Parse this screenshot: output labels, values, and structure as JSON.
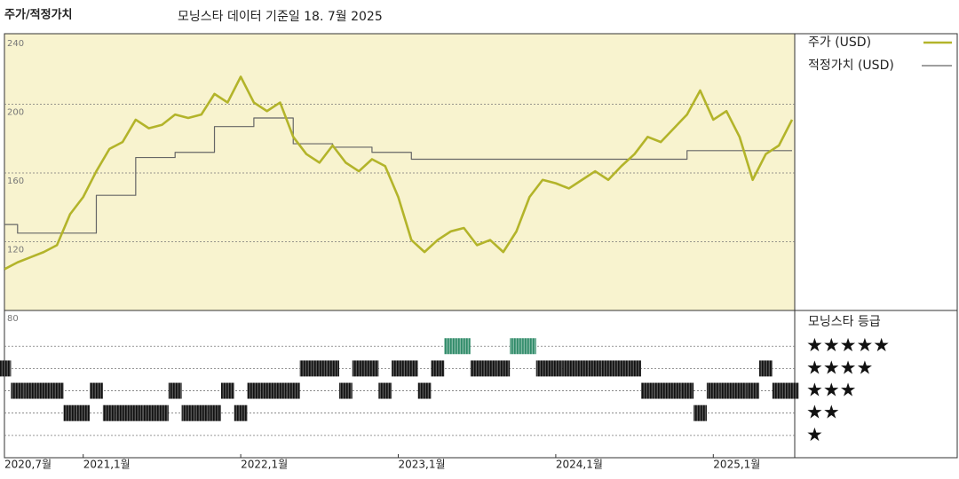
{
  "chart_data": [
    {
      "type": "line",
      "title": "주가/적정가치",
      "subtitle": "모닝스타 데이터 기준일 18. 7월 2025",
      "x": [
        "2020-07",
        "2020-08",
        "2020-09",
        "2020-10",
        "2020-11",
        "2020-12",
        "2021-01",
        "2021-02",
        "2021-03",
        "2021-04",
        "2021-05",
        "2021-06",
        "2021-07",
        "2021-08",
        "2021-09",
        "2021-10",
        "2021-11",
        "2021-12",
        "2022-01",
        "2022-02",
        "2022-03",
        "2022-04",
        "2022-05",
        "2022-06",
        "2022-07",
        "2022-08",
        "2022-09",
        "2022-10",
        "2022-11",
        "2022-12",
        "2023-01",
        "2023-02",
        "2023-03",
        "2023-04",
        "2023-05",
        "2023-06",
        "2023-07",
        "2023-08",
        "2023-09",
        "2023-10",
        "2023-11",
        "2023-12",
        "2024-01",
        "2024-02",
        "2024-03",
        "2024-04",
        "2024-05",
        "2024-06",
        "2024-07",
        "2024-08",
        "2024-09",
        "2024-10",
        "2024-11",
        "2024-12",
        "2025-01",
        "2025-02",
        "2025-03",
        "2025-04",
        "2025-05",
        "2025-06",
        "2025-07"
      ],
      "series": [
        {
          "name": "주가 (USD)",
          "color": "#b3b42a",
          "values": [
            104,
            108,
            111,
            114,
            118,
            136,
            146,
            161,
            174,
            178,
            191,
            186,
            188,
            194,
            192,
            194,
            206,
            201,
            216,
            201,
            196,
            201,
            181,
            171,
            166,
            176,
            166,
            161,
            168,
            164,
            146,
            121,
            114,
            121,
            126,
            128,
            118,
            121,
            114,
            126,
            146,
            156,
            154,
            151,
            156,
            161,
            156,
            164,
            171,
            181,
            178,
            186,
            194,
            208,
            191,
            196,
            181,
            156,
            171,
            176,
            191
          ]
        },
        {
          "name": "적정가치 (USD)",
          "color": "#666666",
          "step": true,
          "values": [
            130,
            125,
            125,
            125,
            125,
            125,
            125,
            147,
            147,
            147,
            169,
            169,
            169,
            172,
            172,
            172,
            187,
            187,
            187,
            192,
            192,
            192,
            177,
            177,
            177,
            175,
            175,
            175,
            172,
            172,
            172,
            168,
            168,
            168,
            168,
            168,
            168,
            168,
            168,
            168,
            168,
            168,
            168,
            168,
            168,
            168,
            168,
            168,
            168,
            168,
            168,
            168,
            173,
            173,
            173,
            173,
            173,
            173,
            173,
            173,
            173
          ]
        }
      ],
      "xticks": [
        {
          "value": "2020-07",
          "label": "2020,7월"
        },
        {
          "value": "2021-01",
          "label": "2021,1월"
        },
        {
          "value": "2022-01",
          "label": "2022,1월"
        },
        {
          "value": "2023-01",
          "label": "2023,1월"
        },
        {
          "value": "2024-01",
          "label": "2024,1월"
        },
        {
          "value": "2025-01",
          "label": "2025,1월"
        }
      ],
      "ylim": [
        80,
        240
      ],
      "yticks": [
        80,
        120,
        160,
        200,
        240
      ],
      "grid": true,
      "background": "#f8f3cf"
    },
    {
      "type": "rating",
      "title": "모닝스타 등급",
      "values": [
        4,
        3,
        3,
        3,
        3,
        2,
        2,
        3,
        2,
        2,
        2,
        2,
        2,
        3,
        2,
        2,
        2,
        3,
        2,
        3,
        3,
        3,
        3,
        4,
        4,
        4,
        3,
        4,
        4,
        3,
        4,
        4,
        3,
        4,
        5,
        5,
        4,
        4,
        4,
        5,
        5,
        4,
        4,
        4,
        4,
        4,
        4,
        4,
        4,
        3,
        3,
        3,
        3,
        2,
        3,
        3,
        3,
        3,
        4,
        3,
        3
      ],
      "ylim": [
        0,
        6.6
      ],
      "yticks": [
        {
          "value": 5,
          "label": "★★★★★"
        },
        {
          "value": 4,
          "label": "★★★★"
        },
        {
          "value": 3,
          "label": "★★★"
        },
        {
          "value": 2,
          "label": "★★"
        },
        {
          "value": 1,
          "label": "★"
        }
      ],
      "color": "#222222",
      "highlight_color": "#2e8a68"
    }
  ]
}
